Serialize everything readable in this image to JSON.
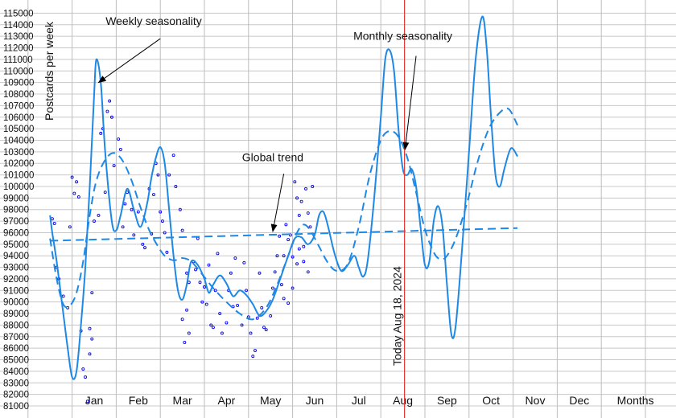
{
  "chart_data": {
    "type": "line",
    "title": "",
    "xlabel": "",
    "ylabel": "Postcards per week",
    "ylim": [
      81000,
      115000
    ],
    "y_ticks": [
      81000,
      82000,
      83000,
      84000,
      85000,
      86000,
      87000,
      88000,
      89000,
      90000,
      91000,
      92000,
      93000,
      94000,
      95000,
      96000,
      97000,
      98000,
      99000,
      100000,
      101000,
      102000,
      103000,
      104000,
      105000,
      106000,
      107000,
      108000,
      109000,
      110000,
      111000,
      112000,
      113000,
      114000,
      115000
    ],
    "grid": true,
    "x_months": [
      "Jan",
      "Feb",
      "Mar",
      "Apr",
      "May",
      "Jun",
      "Jul",
      "Aug",
      "Sep",
      "Oct",
      "Nov",
      "Dec",
      "Months"
    ],
    "today_label": "Today Aug 18, 2024",
    "today_month_index": 7,
    "series": [
      {
        "kind": "solid",
        "points": [
          [
            -1.0,
            97500
          ],
          [
            -0.95,
            96000
          ],
          [
            -0.85,
            93500
          ],
          [
            -0.7,
            89000
          ],
          [
            -0.6,
            86000
          ],
          [
            -0.5,
            83500
          ],
          [
            -0.4,
            84000
          ],
          [
            -0.3,
            88000
          ],
          [
            -0.2,
            93000
          ],
          [
            -0.1,
            100000
          ],
          [
            0.0,
            108000
          ],
          [
            0.05,
            111000
          ],
          [
            0.15,
            109000
          ],
          [
            0.25,
            103000
          ],
          [
            0.4,
            97000
          ],
          [
            0.5,
            96200
          ],
          [
            0.6,
            97500
          ],
          [
            0.75,
            99800
          ],
          [
            0.9,
            98000
          ],
          [
            1.05,
            96500
          ],
          [
            1.2,
            98500
          ],
          [
            1.3,
            100800
          ],
          [
            1.4,
            102500
          ],
          [
            1.5,
            103400
          ],
          [
            1.6,
            102000
          ],
          [
            1.7,
            98000
          ],
          [
            1.8,
            94000
          ],
          [
            1.9,
            91000
          ],
          [
            2.0,
            90200
          ],
          [
            2.1,
            91500
          ],
          [
            2.2,
            93500
          ],
          [
            2.35,
            93200
          ],
          [
            2.5,
            92000
          ],
          [
            2.6,
            90800
          ],
          [
            2.7,
            91500
          ],
          [
            2.85,
            92300
          ],
          [
            3.0,
            91600
          ],
          [
            3.15,
            90500
          ],
          [
            3.3,
            91000
          ],
          [
            3.45,
            90600
          ],
          [
            3.6,
            89800
          ],
          [
            3.75,
            88800
          ],
          [
            3.9,
            89200
          ],
          [
            4.05,
            90200
          ],
          [
            4.2,
            91800
          ],
          [
            4.4,
            94000
          ],
          [
            4.55,
            95500
          ],
          [
            4.7,
            95600
          ],
          [
            4.85,
            95000
          ],
          [
            5.0,
            95800
          ],
          [
            5.1,
            97500
          ],
          [
            5.2,
            97800
          ],
          [
            5.3,
            96600
          ],
          [
            5.45,
            94200
          ],
          [
            5.6,
            92700
          ],
          [
            5.75,
            93200
          ],
          [
            5.9,
            94000
          ],
          [
            6.0,
            93000
          ],
          [
            6.1,
            92200
          ],
          [
            6.2,
            93500
          ],
          [
            6.35,
            99000
          ],
          [
            6.5,
            106000
          ],
          [
            6.6,
            111000
          ],
          [
            6.7,
            111800
          ],
          [
            6.8,
            110000
          ],
          [
            6.9,
            105000
          ],
          [
            7.0,
            101500
          ],
          [
            7.1,
            101000
          ],
          [
            7.2,
            101500
          ],
          [
            7.3,
            100000
          ],
          [
            7.4,
            96500
          ],
          [
            7.5,
            93200
          ],
          [
            7.6,
            93500
          ],
          [
            7.7,
            97000
          ],
          [
            7.8,
            98300
          ],
          [
            7.9,
            96500
          ],
          [
            8.0,
            91500
          ],
          [
            8.1,
            87200
          ],
          [
            8.2,
            88000
          ],
          [
            8.35,
            95000
          ],
          [
            8.5,
            103000
          ],
          [
            8.65,
            111000
          ],
          [
            8.8,
            114700
          ],
          [
            8.9,
            112000
          ],
          [
            9.0,
            106000
          ],
          [
            9.1,
            101000
          ],
          [
            9.2,
            100000
          ],
          [
            9.3,
            101500
          ],
          [
            9.45,
            103300
          ],
          [
            9.6,
            102600
          ]
        ]
      },
      {
        "kind": "dashed",
        "points": [
          [
            -1.0,
            95500
          ],
          [
            -0.85,
            92000
          ],
          [
            -0.7,
            89800
          ],
          [
            -0.55,
            89700
          ],
          [
            -0.4,
            90800
          ],
          [
            -0.25,
            93500
          ],
          [
            -0.1,
            97500
          ],
          [
            0.05,
            100500
          ],
          [
            0.25,
            102300
          ],
          [
            0.45,
            102900
          ],
          [
            0.65,
            102200
          ],
          [
            0.85,
            100500
          ],
          [
            1.05,
            98200
          ],
          [
            1.25,
            96200
          ],
          [
            1.45,
            94800
          ],
          [
            1.6,
            94000
          ],
          [
            1.8,
            93600
          ],
          [
            2.0,
            93800
          ],
          [
            2.2,
            93500
          ],
          [
            2.45,
            92400
          ],
          [
            2.7,
            91200
          ],
          [
            3.0,
            90000
          ],
          [
            3.3,
            89000
          ],
          [
            3.6,
            88500
          ],
          [
            3.9,
            89500
          ],
          [
            4.15,
            91500
          ],
          [
            4.4,
            94000
          ],
          [
            4.6,
            96000
          ],
          [
            4.75,
            96700
          ],
          [
            4.9,
            96200
          ],
          [
            5.1,
            94800
          ],
          [
            5.3,
            93400
          ],
          [
            5.5,
            92700
          ],
          [
            5.75,
            93300
          ],
          [
            6.0,
            96500
          ],
          [
            6.25,
            101000
          ],
          [
            6.5,
            104000
          ],
          [
            6.7,
            104800
          ],
          [
            6.9,
            104300
          ],
          [
            7.1,
            102500
          ],
          [
            7.3,
            99500
          ],
          [
            7.5,
            96300
          ],
          [
            7.7,
            94300
          ],
          [
            7.85,
            93700
          ],
          [
            8.0,
            94000
          ],
          [
            8.2,
            95500
          ],
          [
            8.45,
            98500
          ],
          [
            8.7,
            102200
          ],
          [
            8.95,
            105000
          ],
          [
            9.2,
            106400
          ],
          [
            9.4,
            106700
          ],
          [
            9.6,
            105300
          ]
        ]
      },
      {
        "kind": "trend",
        "points": [
          [
            -1.0,
            95300
          ],
          [
            9.6,
            96400
          ]
        ]
      }
    ],
    "scatter": [
      [
        -0.95,
        97200
      ],
      [
        -0.9,
        96800
      ],
      [
        -0.85,
        93000
      ],
      [
        -0.8,
        92000
      ],
      [
        -0.7,
        90500
      ],
      [
        -0.6,
        89500
      ],
      [
        -0.55,
        96500
      ],
      [
        -0.5,
        100800
      ],
      [
        -0.45,
        99400
      ],
      [
        -0.4,
        100400
      ],
      [
        -0.35,
        99100
      ],
      [
        -0.3,
        87500
      ],
      [
        -0.25,
        84200
      ],
      [
        -0.2,
        83500
      ],
      [
        -0.15,
        81400
      ],
      [
        -0.1,
        85500
      ],
      [
        -0.05,
        90800
      ],
      [
        0.0,
        97000
      ],
      [
        -0.1,
        87700
      ],
      [
        -0.05,
        86800
      ],
      [
        0.1,
        97500
      ],
      [
        0.15,
        104600
      ],
      [
        0.2,
        105000
      ],
      [
        0.25,
        99500
      ],
      [
        0.3,
        106500
      ],
      [
        0.35,
        107400
      ],
      [
        0.4,
        106000
      ],
      [
        0.45,
        101800
      ],
      [
        0.55,
        104100
      ],
      [
        0.6,
        103200
      ],
      [
        0.65,
        96500
      ],
      [
        0.7,
        98500
      ],
      [
        0.75,
        99500
      ],
      [
        0.85,
        98000
      ],
      [
        0.9,
        95800
      ],
      [
        1.0,
        97800
      ],
      [
        1.1,
        95000
      ],
      [
        1.15,
        94700
      ],
      [
        1.25,
        99800
      ],
      [
        1.3,
        95900
      ],
      [
        1.35,
        99300
      ],
      [
        1.4,
        102000
      ],
      [
        1.45,
        101000
      ],
      [
        1.5,
        97800
      ],
      [
        1.55,
        97000
      ],
      [
        1.6,
        96000
      ],
      [
        1.65,
        94300
      ],
      [
        1.7,
        101000
      ],
      [
        1.8,
        102700
      ],
      [
        1.85,
        100000
      ],
      [
        1.95,
        98000
      ],
      [
        2.0,
        96200
      ],
      [
        2.1,
        92500
      ],
      [
        2.15,
        91700
      ],
      [
        2.0,
        88500
      ],
      [
        2.05,
        86500
      ],
      [
        2.1,
        89300
      ],
      [
        2.15,
        87300
      ],
      [
        2.25,
        93500
      ],
      [
        2.3,
        92800
      ],
      [
        2.35,
        95500
      ],
      [
        2.4,
        91700
      ],
      [
        2.45,
        90000
      ],
      [
        2.5,
        91300
      ],
      [
        2.55,
        89800
      ],
      [
        2.6,
        93200
      ],
      [
        2.65,
        88000
      ],
      [
        2.7,
        87800
      ],
      [
        2.75,
        91000
      ],
      [
        2.8,
        94200
      ],
      [
        2.85,
        89000
      ],
      [
        2.9,
        87300
      ],
      [
        3.0,
        88200
      ],
      [
        3.05,
        91000
      ],
      [
        3.1,
        92500
      ],
      [
        3.15,
        89600
      ],
      [
        3.2,
        93800
      ],
      [
        3.25,
        89700
      ],
      [
        3.35,
        88000
      ],
      [
        3.4,
        93400
      ],
      [
        3.45,
        91000
      ],
      [
        3.5,
        88700
      ],
      [
        3.55,
        87300
      ],
      [
        3.6,
        85300
      ],
      [
        3.65,
        85800
      ],
      [
        3.7,
        88600
      ],
      [
        3.75,
        92500
      ],
      [
        3.8,
        89500
      ],
      [
        3.85,
        87800
      ],
      [
        3.9,
        87600
      ],
      [
        4.0,
        88800
      ],
      [
        4.05,
        91200
      ],
      [
        4.1,
        92600
      ],
      [
        4.15,
        94000
      ],
      [
        4.2,
        95700
      ],
      [
        4.25,
        91500
      ],
      [
        4.3,
        94000
      ],
      [
        4.35,
        96700
      ],
      [
        4.4,
        95400
      ],
      [
        4.45,
        95800
      ],
      [
        4.5,
        93900
      ],
      [
        4.55,
        100400
      ],
      [
        4.6,
        99000
      ],
      [
        4.65,
        97500
      ],
      [
        4.7,
        98700
      ],
      [
        4.75,
        94800
      ],
      [
        4.8,
        99800
      ],
      [
        4.85,
        97700
      ],
      [
        4.9,
        96500
      ],
      [
        4.95,
        100000
      ],
      [
        4.3,
        90300
      ],
      [
        4.4,
        89900
      ],
      [
        4.5,
        91200
      ],
      [
        4.6,
        93300
      ],
      [
        4.65,
        94600
      ],
      [
        4.75,
        93500
      ],
      [
        4.85,
        92600
      ]
    ]
  },
  "annotations": [
    {
      "text": "Weekly seasonality",
      "from": [
        1.5,
        112800
      ],
      "to": [
        0.1,
        109000
      ],
      "text_at": [
        1.35,
        114000
      ]
    },
    {
      "text": "Monthly seasonality",
      "from": [
        7.3,
        111300
      ],
      "to": [
        7.05,
        103200
      ],
      "text_at": [
        7.0,
        112700
      ]
    },
    {
      "text": "Global trend",
      "from": [
        4.3,
        101100
      ],
      "to": [
        4.05,
        96100
      ],
      "text_at": [
        4.05,
        102200
      ]
    }
  ],
  "colors": {
    "line": "#1E88E5",
    "scatter": "#0000EE",
    "today": "#E53935",
    "grid_h": "#C8C8C8",
    "grid_v": "#BDBDBD"
  }
}
